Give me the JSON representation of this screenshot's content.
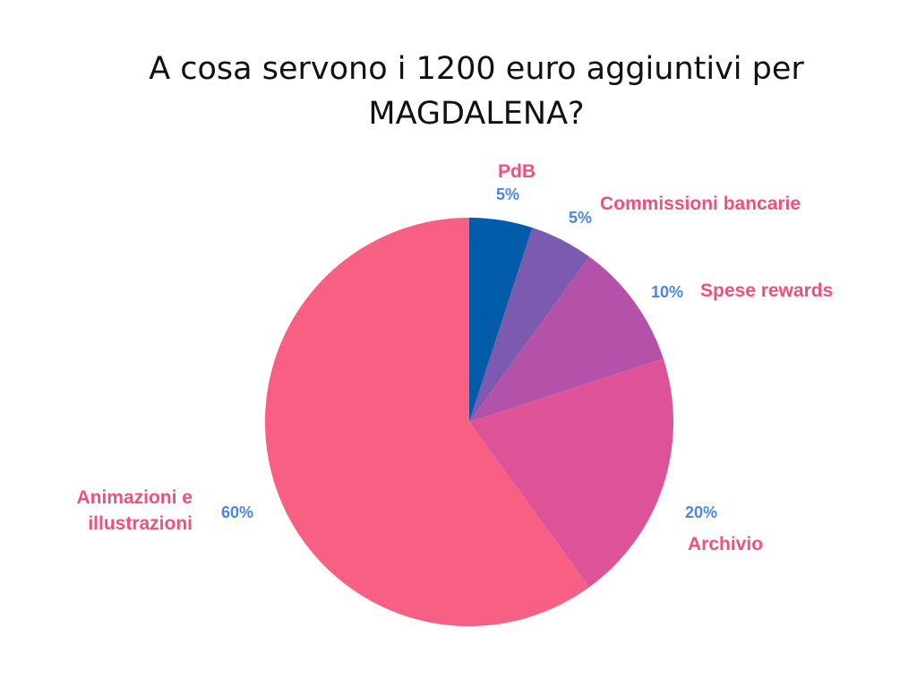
{
  "chart_data": {
    "type": "pie",
    "title_lines": [
      "A cosa servono i 1200 euro aggiuntivi per",
      "MAGDALENA?"
    ],
    "start_angle_deg": 0,
    "direction": "clockwise",
    "slices": [
      {
        "label": "PdB",
        "label_lines": [
          "PdB"
        ],
        "value": 5,
        "value_label": "5%",
        "color": "#005ba8"
      },
      {
        "label": "Commissioni bancarie",
        "label_lines": [
          "Commissioni bancarie"
        ],
        "value": 5,
        "value_label": "5%",
        "color": "#7b5aaf"
      },
      {
        "label": "Spese rewards",
        "label_lines": [
          "Spese rewards"
        ],
        "value": 10,
        "value_label": "10%",
        "color": "#b352a8"
      },
      {
        "label": "Archivio",
        "label_lines": [
          "Archivio"
        ],
        "value": 20,
        "value_label": "20%",
        "color": "#de5298"
      },
      {
        "label": "Animazioni e illustrazioni",
        "label_lines": [
          "Animazioni e",
          "illustrazioni"
        ],
        "value": 60,
        "value_label": "60%",
        "color": "#f75f83"
      }
    ],
    "label_color": "#f2507c",
    "value_color": "#4a86e8"
  }
}
